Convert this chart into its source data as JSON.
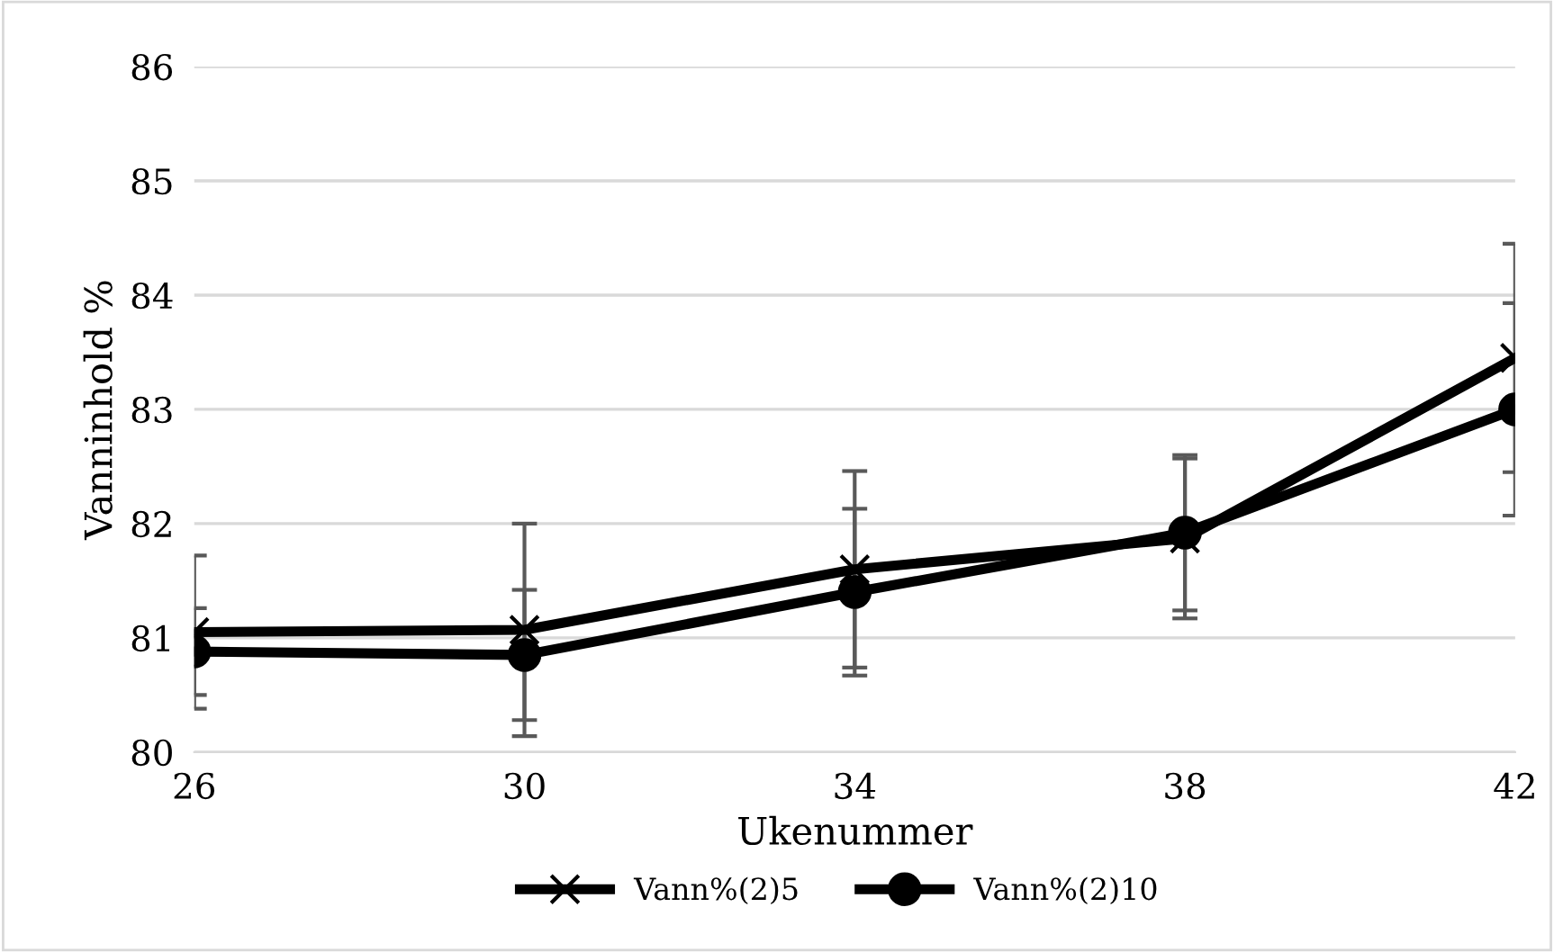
{
  "chart_data": {
    "type": "line",
    "xlabel": "Ukenummer",
    "ylabel": "Vanninhold %",
    "categories": [
      "26",
      "30",
      "34",
      "38",
      "42"
    ],
    "series": [
      {
        "name": "Vann%(2)5",
        "color": "#000000",
        "marker": "cross",
        "values": [
          81.05,
          81.07,
          81.6,
          81.87,
          83.45
        ],
        "errors": [
          0.67,
          0.93,
          0.86,
          0.7,
          1.0
        ]
      },
      {
        "name": "Vann%(2)10",
        "color": "#000000",
        "marker": "circle",
        "values": [
          80.88,
          80.85,
          81.4,
          81.92,
          83.0
        ],
        "errors": [
          0.38,
          0.57,
          0.73,
          0.68,
          0.93
        ]
      }
    ],
    "ylim": [
      80,
      86
    ],
    "yticks": [
      80,
      81,
      82,
      83,
      84,
      85,
      86
    ],
    "grid": "y",
    "legend": "bottom"
  }
}
